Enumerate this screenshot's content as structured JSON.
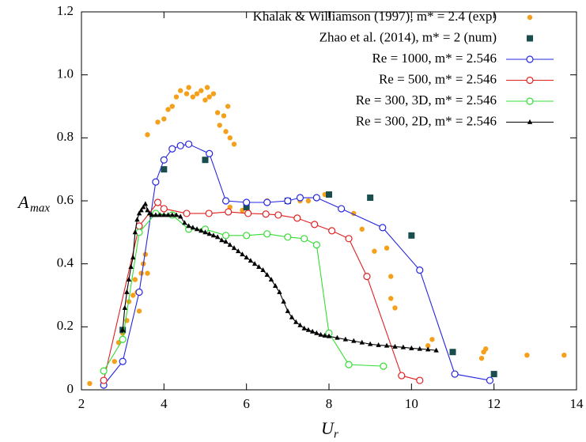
{
  "chart_data": {
    "type": "scatter",
    "xlabel": "U",
    "xlabel_sub": "r",
    "ylabel": "A",
    "ylabel_sub": "max",
    "xlim": [
      2,
      14
    ],
    "xticks": [
      2,
      4,
      6,
      8,
      10,
      12,
      14
    ],
    "ylim": [
      0,
      1.2
    ],
    "yticks": [
      0,
      0.2,
      0.4,
      0.6,
      0.8,
      {
        "value": 1,
        "label": "1.0"
      },
      1.2
    ],
    "grid": false,
    "legend": "upper right",
    "series": [
      {
        "name": "Khalak & Williamson (1997), m* = 2.4 (exp)",
        "color": "#f5a01a",
        "marker": "dot",
        "line": false,
        "x": [
          2.2,
          2.8,
          2.9,
          3.0,
          3.1,
          3.15,
          3.25,
          3.3,
          3.35,
          3.4,
          3.45,
          3.5,
          3.55,
          3.6,
          3.6,
          3.85,
          4.0,
          4.1,
          4.2,
          4.3,
          4.4,
          4.55,
          4.6,
          4.7,
          4.8,
          4.9,
          5.0,
          5.05,
          5.1,
          5.2,
          5.3,
          5.35,
          5.45,
          5.5,
          5.55,
          5.6,
          5.7,
          5.6,
          5.9,
          6.5,
          7.3,
          7.5,
          7.9,
          8.6,
          8.8,
          9.1,
          9.4,
          9.5,
          9.5,
          9.6,
          10.4,
          10.5,
          11.7,
          11.75,
          11.8,
          12.8,
          13.7
        ],
        "values": [
          0.02,
          0.09,
          0.15,
          0.18,
          0.22,
          0.28,
          0.3,
          0.35,
          0.31,
          0.25,
          0.37,
          0.4,
          0.43,
          0.37,
          0.81,
          0.85,
          0.86,
          0.89,
          0.9,
          0.93,
          0.95,
          0.94,
          0.96,
          0.93,
          0.94,
          0.95,
          0.92,
          0.96,
          0.93,
          0.94,
          0.88,
          0.84,
          0.87,
          0.82,
          0.9,
          0.8,
          0.78,
          0.58,
          0.57,
          0.6,
          0.6,
          0.6,
          0.62,
          0.56,
          0.51,
          0.44,
          0.45,
          0.36,
          0.29,
          0.26,
          0.14,
          0.16,
          0.1,
          0.12,
          0.13,
          0.11,
          0.11
        ]
      },
      {
        "name": "Zhao et al. (2014), m* = 2 (num)",
        "color": "#1a4d4d",
        "marker": "square",
        "line": false,
        "x": [
          3.0,
          4.0,
          5.0,
          6.0,
          7.0,
          8.0,
          9.0,
          10.0,
          11.0,
          12.0
        ],
        "values": [
          0.19,
          0.7,
          0.73,
          0.58,
          0.6,
          0.62,
          0.61,
          0.49,
          0.12,
          0.05
        ]
      },
      {
        "name": "Re = 1000, m* = 2.546",
        "color": "#2626e0",
        "marker": "circle",
        "line": true,
        "x": [
          2.54,
          3.0,
          3.4,
          3.8,
          4.0,
          4.2,
          4.4,
          4.6,
          5.1,
          5.5,
          6.0,
          6.5,
          7.0,
          7.3,
          7.7,
          8.3,
          9.3,
          10.2,
          11.05,
          11.9
        ],
        "values": [
          0.015,
          0.09,
          0.31,
          0.66,
          0.73,
          0.765,
          0.775,
          0.78,
          0.75,
          0.6,
          0.595,
          0.595,
          0.6,
          0.61,
          0.61,
          0.575,
          0.515,
          0.38,
          0.05,
          0.03
        ]
      },
      {
        "name": "Re = 500, m* = 2.546",
        "color": "#e02020",
        "marker": "circle",
        "line": true,
        "x": [
          2.54,
          3.4,
          3.85,
          4.0,
          4.55,
          5.09,
          5.56,
          6.04,
          6.47,
          6.77,
          7.23,
          7.65,
          8.07,
          8.48,
          8.92,
          9.76,
          10.2
        ],
        "values": [
          0.03,
          0.52,
          0.595,
          0.575,
          0.56,
          0.56,
          0.565,
          0.56,
          0.558,
          0.555,
          0.545,
          0.525,
          0.505,
          0.48,
          0.36,
          0.045,
          0.03
        ]
      },
      {
        "name": "Re = 300, 3D, m* = 2.546",
        "color": "#33dd33",
        "marker": "circle",
        "line": true,
        "x": [
          2.54,
          3.0,
          3.4,
          3.8,
          4.2,
          4.6,
          5.0,
          5.5,
          6.0,
          6.5,
          7.0,
          7.4,
          7.7,
          8.0,
          8.48,
          9.32
        ],
        "values": [
          0.06,
          0.16,
          0.5,
          0.56,
          0.555,
          0.51,
          0.51,
          0.49,
          0.49,
          0.495,
          0.485,
          0.48,
          0.46,
          0.18,
          0.08,
          0.075
        ]
      },
      {
        "name": "Re = 300, 2D,  m* = 2.546",
        "color": "#000000",
        "marker": "triangle",
        "line": true,
        "x": [
          3.0,
          3.05,
          3.1,
          3.15,
          3.2,
          3.25,
          3.3,
          3.35,
          3.4,
          3.45,
          3.5,
          3.55,
          3.6,
          3.65,
          3.7,
          3.8,
          3.9,
          4.0,
          4.1,
          4.2,
          4.3,
          4.4,
          4.5,
          4.6,
          4.7,
          4.8,
          4.9,
          5.0,
          5.1,
          5.2,
          5.3,
          5.4,
          5.5,
          5.6,
          5.7,
          5.8,
          5.9,
          6.0,
          6.1,
          6.2,
          6.3,
          6.4,
          6.5,
          6.6,
          6.7,
          6.8,
          6.9,
          7.0,
          7.1,
          7.2,
          7.3,
          7.4,
          7.5,
          7.6,
          7.7,
          7.8,
          7.9,
          8.0,
          8.2,
          8.4,
          8.6,
          8.8,
          9.0,
          9.2,
          9.4,
          9.6,
          9.8,
          10.0,
          10.2,
          10.4,
          10.6
        ],
        "values": [
          0.19,
          0.26,
          0.31,
          0.35,
          0.39,
          0.42,
          0.5,
          0.54,
          0.56,
          0.57,
          0.58,
          0.59,
          0.57,
          0.56,
          0.555,
          0.555,
          0.555,
          0.555,
          0.555,
          0.555,
          0.555,
          0.55,
          0.53,
          0.52,
          0.515,
          0.51,
          0.505,
          0.5,
          0.495,
          0.49,
          0.485,
          0.475,
          0.47,
          0.46,
          0.45,
          0.44,
          0.43,
          0.42,
          0.41,
          0.4,
          0.39,
          0.38,
          0.365,
          0.35,
          0.33,
          0.31,
          0.28,
          0.25,
          0.23,
          0.215,
          0.205,
          0.195,
          0.19,
          0.185,
          0.18,
          0.175,
          0.172,
          0.17,
          0.165,
          0.16,
          0.155,
          0.15,
          0.145,
          0.142,
          0.14,
          0.137,
          0.135,
          0.132,
          0.13,
          0.128,
          0.125
        ]
      }
    ]
  }
}
